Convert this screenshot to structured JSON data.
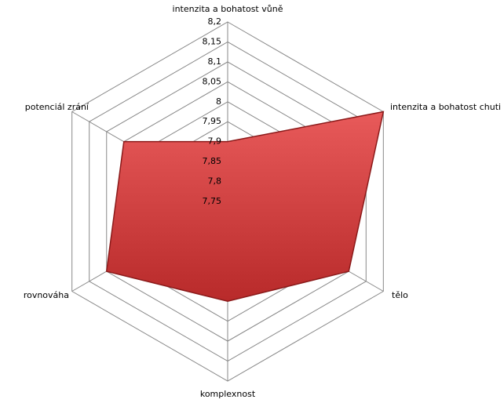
{
  "chart_data": {
    "type": "radar",
    "categories": [
      "intenzita a bohatost vůně",
      "intenzita a bohatost chuti",
      "tělo",
      "komplexnost",
      "rovnováha",
      "potenciál zrání"
    ],
    "values": [
      7.9,
      8.2,
      8.1,
      8.0,
      8.1,
      8.05
    ],
    "color": "#d94040",
    "ylim": [
      7.75,
      8.2
    ],
    "yticks": [
      {
        "value": 7.75,
        "label": "7,75"
      },
      {
        "value": 7.8,
        "label": "7,8"
      },
      {
        "value": 7.85,
        "label": "7,85"
      },
      {
        "value": 7.9,
        "label": "7,9"
      },
      {
        "value": 7.95,
        "label": "7,95"
      },
      8,
      {
        "value": 8.05,
        "label": "8,05"
      },
      {
        "value": 8.1,
        "label": "8,1"
      },
      {
        "value": 8.15,
        "label": "8,15"
      },
      {
        "value": 8.2,
        "label": "8,2"
      }
    ],
    "grid": true
  }
}
